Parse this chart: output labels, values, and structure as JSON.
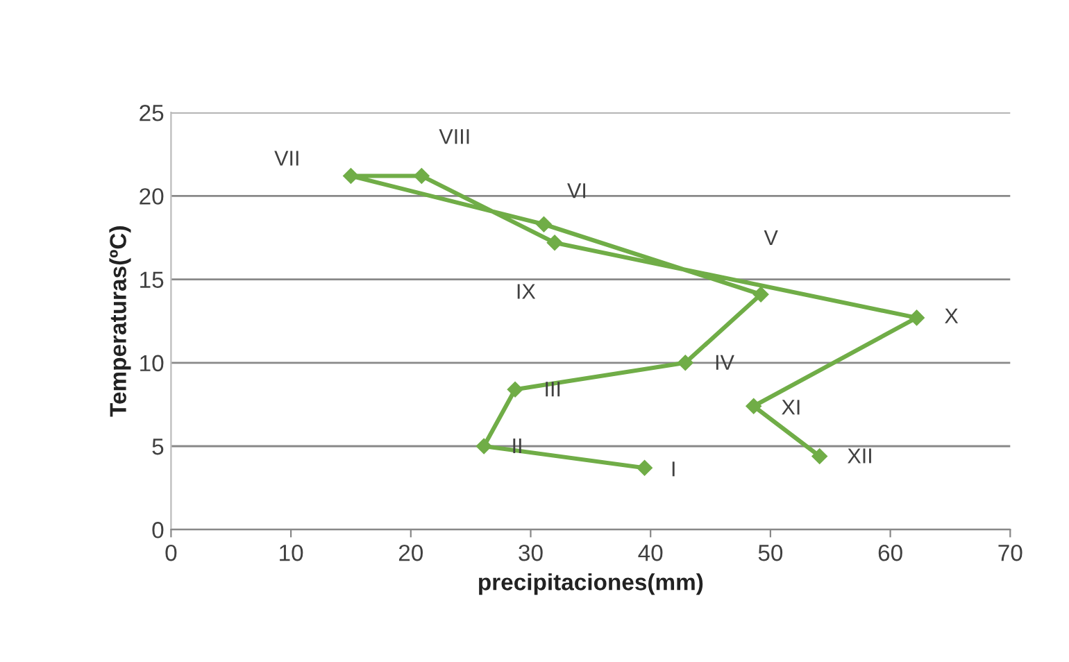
{
  "chart_data": {
    "type": "line",
    "xlabel": "precipitaciones(mm)",
    "ylabel": "Temperaturas(ºC)",
    "x": [
      39.5,
      26.1,
      28.7,
      42.9,
      49.2,
      31.1,
      15.0,
      20.9,
      32.0,
      62.2,
      48.6,
      54.1
    ],
    "series": [
      {
        "color": "#70ad47",
        "values": [
          3.7,
          5.0,
          8.4,
          10.0,
          14.1,
          18.3,
          21.2,
          21.2,
          17.2,
          12.7,
          7.4,
          4.4
        ]
      }
    ],
    "annotations": [
      {
        "text": "I",
        "x": 39.5,
        "y": 3.7
      },
      {
        "text": "II",
        "x": 26.1,
        "y": 5.0
      },
      {
        "text": "III",
        "x": 28.7,
        "y": 8.4
      },
      {
        "text": "IV",
        "x": 42.9,
        "y": 10.0
      },
      {
        "text": "V",
        "x": 49.2,
        "y": 14.1
      },
      {
        "text": "VI",
        "x": 31.1,
        "y": 18.3
      },
      {
        "text": "VII",
        "x": 15.0,
        "y": 21.2
      },
      {
        "text": "VIII",
        "x": 20.9,
        "y": 21.2
      },
      {
        "text": "IX",
        "x": 32.0,
        "y": 17.2
      },
      {
        "text": "X",
        "x": 62.2,
        "y": 12.7
      },
      {
        "text": "XI",
        "x": 48.6,
        "y": 7.4
      },
      {
        "text": "XII",
        "x": 54.1,
        "y": 4.4
      }
    ],
    "xlim": [
      0,
      70
    ],
    "xticks": [
      0,
      10,
      20,
      30,
      40,
      50,
      60,
      70
    ],
    "ylim": [
      0,
      25
    ],
    "yticks": [
      0,
      5,
      10,
      15,
      20,
      25
    ],
    "grid": "y",
    "marker": "diamond",
    "line_style": "solid"
  }
}
